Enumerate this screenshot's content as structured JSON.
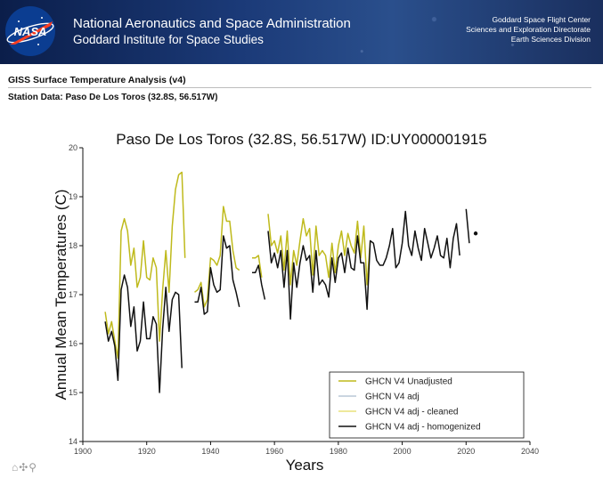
{
  "header": {
    "agency_name": "National Aeronautics and Space Administration",
    "institute": "Goddard Institute for Space Studies",
    "logo_text": "NASA",
    "center_lines": [
      "Goddard Space Flight Center",
      "Sciences and Exploration Directorate",
      "Earth Sciences Division"
    ]
  },
  "page": {
    "analysis_title": "GISS Surface Temperature Analysis (v4)",
    "station_title": "Station Data: Paso De Los Toros (32.8S, 56.517W)"
  },
  "toolbar": {
    "icons_text": "⌂✣⚲"
  },
  "colors": {
    "unadjusted": "#bfba1c",
    "adj": "#b9c7d6",
    "cleaned": "#e8e27a",
    "homogenized": "#111111"
  },
  "chart_data": {
    "type": "line",
    "title": "Paso De Los Toros (32.8S, 56.517W) ID:UY000001915",
    "xlabel": "Years",
    "ylabel": "Annual Mean Temperatures (C)",
    "xlim": [
      1900,
      2040
    ],
    "ylim": [
      14,
      20
    ],
    "xticks": [
      1900,
      1920,
      1940,
      1960,
      1980,
      2000,
      2020,
      2040
    ],
    "yticks": [
      14,
      15,
      16,
      17,
      18,
      19,
      20
    ],
    "legend_position": "bottom-right",
    "series": [
      {
        "name": "GHCN V4 Unadjusted",
        "segments": [
          [
            [
              1907,
              16.65
            ],
            [
              1908,
              16.2
            ],
            [
              1909,
              16.45
            ],
            [
              1910,
              16.05
            ],
            [
              1911,
              15.7
            ],
            [
              1912,
              18.3
            ],
            [
              1913,
              18.55
            ],
            [
              1914,
              18.3
            ],
            [
              1915,
              17.6
            ],
            [
              1916,
              17.95
            ],
            [
              1917,
              17.15
            ],
            [
              1918,
              17.35
            ],
            [
              1919,
              18.1
            ],
            [
              1920,
              17.35
            ],
            [
              1921,
              17.3
            ],
            [
              1922,
              17.75
            ],
            [
              1923,
              17.55
            ],
            [
              1924,
              16.05
            ],
            [
              1925,
              17.1
            ],
            [
              1926,
              17.9
            ],
            [
              1927,
              17.05
            ],
            [
              1928,
              18.4
            ],
            [
              1929,
              19.15
            ],
            [
              1930,
              19.45
            ],
            [
              1931,
              19.5
            ],
            [
              1932,
              17.75
            ]
          ],
          [
            [
              1935,
              17.05
            ],
            [
              1936,
              17.1
            ],
            [
              1937,
              17.25
            ],
            [
              1938,
              16.75
            ],
            [
              1939,
              16.9
            ],
            [
              1940,
              17.75
            ],
            [
              1941,
              17.7
            ],
            [
              1942,
              17.6
            ],
            [
              1943,
              17.8
            ],
            [
              1944,
              18.8
            ],
            [
              1945,
              18.5
            ],
            [
              1946,
              18.5
            ],
            [
              1947,
              17.9
            ],
            [
              1948,
              17.55
            ],
            [
              1949,
              17.5
            ]
          ],
          [
            [
              1953,
              17.75
            ],
            [
              1954,
              17.75
            ],
            [
              1955,
              17.8
            ],
            [
              1956,
              17.35
            ]
          ],
          [
            [
              1958,
              18.65
            ],
            [
              1959,
              18.0
            ],
            [
              1960,
              18.1
            ],
            [
              1961,
              17.85
            ],
            [
              1962,
              18.2
            ],
            [
              1963,
              17.5
            ],
            [
              1964,
              18.3
            ],
            [
              1965,
              17.2
            ],
            [
              1966,
              17.9
            ],
            [
              1967,
              17.6
            ],
            [
              1968,
              18.1
            ],
            [
              1969,
              18.55
            ],
            [
              1970,
              18.2
            ],
            [
              1971,
              18.35
            ],
            [
              1972,
              17.4
            ],
            [
              1973,
              18.4
            ],
            [
              1974,
              17.8
            ],
            [
              1975,
              17.9
            ],
            [
              1976,
              17.8
            ],
            [
              1977,
              17.35
            ],
            [
              1978,
              18.05
            ],
            [
              1979,
              17.45
            ],
            [
              1980,
              18.0
            ],
            [
              1981,
              18.3
            ],
            [
              1982,
              17.8
            ],
            [
              1983,
              18.25
            ],
            [
              1984,
              18.0
            ],
            [
              1985,
              17.85
            ],
            [
              1986,
              18.5
            ],
            [
              1987,
              17.75
            ],
            [
              1988,
              18.4
            ],
            [
              1989,
              17.2
            ],
            [
              1990,
              18.1
            ]
          ]
        ]
      },
      {
        "name": "GHCN V4 adj - homogenized",
        "segments": [
          [
            [
              1907,
              16.45
            ],
            [
              1908,
              16.05
            ],
            [
              1909,
              16.25
            ],
            [
              1910,
              15.95
            ],
            [
              1911,
              15.25
            ],
            [
              1912,
              17.1
            ],
            [
              1913,
              17.4
            ],
            [
              1914,
              17.15
            ],
            [
              1915,
              16.35
            ],
            [
              1916,
              16.75
            ],
            [
              1917,
              15.85
            ],
            [
              1918,
              16.05
            ],
            [
              1919,
              16.85
            ],
            [
              1920,
              16.1
            ],
            [
              1921,
              16.1
            ],
            [
              1922,
              16.55
            ],
            [
              1923,
              16.4
            ],
            [
              1924,
              15.0
            ],
            [
              1925,
              16.3
            ],
            [
              1926,
              17.15
            ],
            [
              1927,
              16.25
            ],
            [
              1928,
              16.9
            ],
            [
              1929,
              17.05
            ],
            [
              1930,
              17.0
            ],
            [
              1931,
              15.5
            ]
          ],
          [
            [
              1935,
              16.85
            ],
            [
              1936,
              16.85
            ],
            [
              1937,
              17.15
            ],
            [
              1938,
              16.6
            ],
            [
              1939,
              16.65
            ],
            [
              1940,
              17.55
            ],
            [
              1941,
              17.2
            ],
            [
              1942,
              17.05
            ],
            [
              1943,
              17.1
            ],
            [
              1944,
              18.2
            ],
            [
              1945,
              17.95
            ],
            [
              1946,
              18.0
            ],
            [
              1947,
              17.3
            ],
            [
              1948,
              17.05
            ],
            [
              1949,
              16.75
            ]
          ],
          [
            [
              1953,
              17.45
            ],
            [
              1954,
              17.45
            ],
            [
              1955,
              17.6
            ],
            [
              1956,
              17.2
            ],
            [
              1957,
              16.9
            ]
          ],
          [
            [
              1958,
              18.3
            ],
            [
              1959,
              17.65
            ],
            [
              1960,
              17.85
            ],
            [
              1961,
              17.55
            ],
            [
              1962,
              17.9
            ],
            [
              1963,
              17.15
            ],
            [
              1964,
              17.9
            ],
            [
              1965,
              16.5
            ],
            [
              1966,
              17.65
            ],
            [
              1967,
              17.15
            ],
            [
              1968,
              17.65
            ],
            [
              1969,
              18.0
            ],
            [
              1970,
              17.7
            ],
            [
              1971,
              17.8
            ],
            [
              1972,
              17.05
            ],
            [
              1973,
              17.9
            ],
            [
              1974,
              17.2
            ],
            [
              1975,
              17.3
            ],
            [
              1976,
              17.2
            ],
            [
              1977,
              16.95
            ],
            [
              1978,
              17.75
            ],
            [
              1979,
              17.25
            ],
            [
              1980,
              17.75
            ],
            [
              1981,
              17.85
            ],
            [
              1982,
              17.45
            ],
            [
              1983,
              17.95
            ],
            [
              1984,
              17.55
            ],
            [
              1985,
              17.5
            ],
            [
              1986,
              18.2
            ],
            [
              1987,
              17.65
            ],
            [
              1988,
              17.65
            ],
            [
              1989,
              16.7
            ],
            [
              1990,
              18.1
            ],
            [
              1991,
              18.05
            ],
            [
              1992,
              17.7
            ],
            [
              1993,
              17.6
            ],
            [
              1994,
              17.6
            ],
            [
              1995,
              17.75
            ],
            [
              1996,
              18.0
            ],
            [
              1997,
              18.35
            ],
            [
              1998,
              17.55
            ],
            [
              1999,
              17.65
            ],
            [
              2000,
              18.05
            ],
            [
              2001,
              18.7
            ],
            [
              2002,
              18.0
            ],
            [
              2003,
              17.8
            ],
            [
              2004,
              18.3
            ],
            [
              2005,
              17.95
            ],
            [
              2006,
              17.7
            ],
            [
              2007,
              18.35
            ],
            [
              2008,
              18.05
            ],
            [
              2009,
              17.75
            ],
            [
              2010,
              17.95
            ],
            [
              2011,
              18.2
            ],
            [
              2012,
              17.8
            ],
            [
              2013,
              17.75
            ],
            [
              2014,
              18.15
            ],
            [
              2015,
              17.55
            ],
            [
              2016,
              18.15
            ],
            [
              2017,
              18.45
            ],
            [
              2018,
              17.8
            ]
          ],
          [
            [
              2020,
              18.75
            ],
            [
              2021,
              18.05
            ]
          ],
          [
            [
              2023,
              18.25
            ]
          ]
        ]
      }
    ],
    "legend": [
      {
        "label": "GHCN V4 Unadjusted",
        "color": "#bfba1c"
      },
      {
        "label": "GHCN V4 adj",
        "color": "#b9c7d6"
      },
      {
        "label": "GHCN V4 adj - cleaned",
        "color": "#e8e27a"
      },
      {
        "label": "GHCN V4 adj - homogenized",
        "color": "#111111"
      }
    ]
  }
}
